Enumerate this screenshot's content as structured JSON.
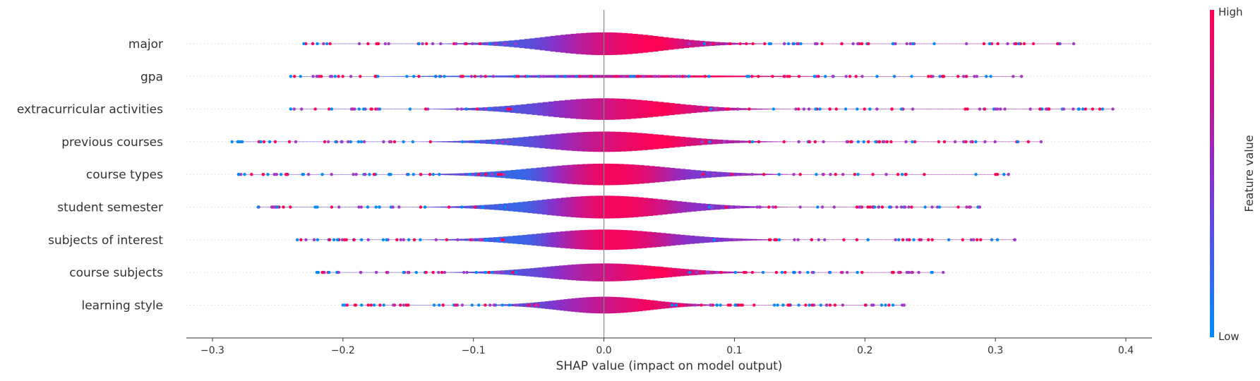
{
  "chart_data": {
    "type": "violin",
    "title": "",
    "xlabel": "SHAP value (impact on model output)",
    "ylabel": "",
    "xlim": [
      -0.32,
      0.42
    ],
    "xticks": [
      -0.3,
      -0.2,
      -0.1,
      0.0,
      0.1,
      0.2,
      0.3,
      0.4
    ],
    "xtick_labels": [
      "−0.3",
      "−0.2",
      "−0.1",
      "0.0",
      "0.1",
      "0.2",
      "0.3",
      "0.4"
    ],
    "grid": false,
    "colorbar": {
      "label": "Feature value",
      "high_label": "High",
      "low_label": "Low",
      "high_color": "#ff0052",
      "low_color": "#008bfb"
    },
    "features": [
      {
        "name": "major",
        "range": [
          -0.23,
          0.36
        ],
        "width": 0.95,
        "sd": 0.045,
        "color_trend": 0.6
      },
      {
        "name": "gpa",
        "range": [
          -0.24,
          0.32
        ],
        "width": 0.12,
        "sd": 0.09,
        "color_trend": 0.3
      },
      {
        "name": "extracurricular activities",
        "range": [
          -0.24,
          0.39
        ],
        "width": 0.9,
        "sd": 0.048,
        "color_trend": 0.5
      },
      {
        "name": "previous courses",
        "range": [
          -0.285,
          0.335
        ],
        "width": 0.85,
        "sd": 0.05,
        "color_trend": 0.55
      },
      {
        "name": "course types",
        "range": [
          -0.28,
          0.31
        ],
        "width": 0.9,
        "sd": 0.052,
        "color_trend": 0.95
      },
      {
        "name": "student semester",
        "range": [
          -0.265,
          0.288
        ],
        "width": 0.95,
        "sd": 0.05,
        "color_trend": 0.9
      },
      {
        "name": "subjects of interest",
        "range": [
          -0.235,
          0.315
        ],
        "width": 0.85,
        "sd": 0.05,
        "color_trend": 0.95
      },
      {
        "name": "course subjects",
        "range": [
          -0.22,
          0.26
        ],
        "width": 0.75,
        "sd": 0.045,
        "color_trend": 0.5
      },
      {
        "name": "learning style",
        "range": [
          -0.2,
          0.23
        ],
        "width": 0.7,
        "sd": 0.035,
        "color_trend": 0.45
      }
    ]
  }
}
